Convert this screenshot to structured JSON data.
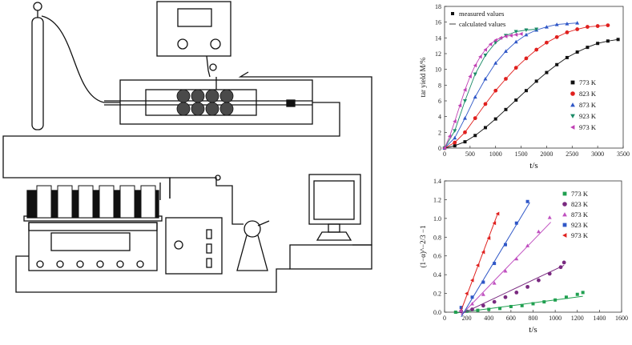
{
  "colors": {
    "series": [
      "#111111",
      "#e0201e",
      "#2f57c7",
      "#1a8a66",
      "#c040b4"
    ],
    "series2": [
      "#20a050",
      "#7a2a80",
      "#c050c0",
      "#2f57c7",
      "#e0201e"
    ]
  },
  "chart_data": [
    {
      "type": "scatter",
      "xlabel": "t/s",
      "ylabel": "tar yield M/%",
      "xlim": [
        0,
        3500
      ],
      "ylim": [
        0,
        18
      ],
      "xticks": [
        0,
        500,
        1000,
        1500,
        2000,
        2500,
        3000,
        3500
      ],
      "yticks": [
        0,
        2,
        4,
        6,
        8,
        10,
        12,
        14,
        16,
        18
      ],
      "legend_top": [
        "measured values",
        "calculated values"
      ],
      "legend_position": "top-left",
      "series": [
        {
          "name": "773 K",
          "marker": "square",
          "x": [
            0,
            200,
            400,
            600,
            800,
            1000,
            1200,
            1400,
            1600,
            1800,
            2000,
            2200,
            2400,
            2600,
            2800,
            3000,
            3200,
            3400
          ],
          "y": [
            0,
            0.3,
            0.8,
            1.6,
            2.6,
            3.7,
            4.9,
            6.1,
            7.3,
            8.5,
            9.6,
            10.6,
            11.5,
            12.2,
            12.8,
            13.3,
            13.6,
            13.8
          ]
        },
        {
          "name": "823 K",
          "marker": "circle",
          "x": [
            0,
            200,
            400,
            600,
            800,
            1000,
            1200,
            1400,
            1600,
            1800,
            2000,
            2200,
            2400,
            2600,
            2800,
            3000,
            3200
          ],
          "y": [
            0,
            0.7,
            2.0,
            3.8,
            5.6,
            7.3,
            8.8,
            10.2,
            11.4,
            12.5,
            13.4,
            14.1,
            14.7,
            15.1,
            15.4,
            15.5,
            15.6
          ]
        },
        {
          "name": "873 K",
          "marker": "triangle-up",
          "x": [
            0,
            200,
            400,
            600,
            800,
            1000,
            1200,
            1400,
            1600,
            1800,
            2000,
            2200,
            2400,
            2600
          ],
          "y": [
            0,
            1.3,
            3.8,
            6.5,
            8.8,
            10.8,
            12.3,
            13.5,
            14.4,
            15.0,
            15.4,
            15.7,
            15.8,
            15.9
          ]
        },
        {
          "name": "923 K",
          "marker": "triangle-down",
          "x": [
            0,
            200,
            400,
            600,
            800,
            1000,
            1200,
            1400,
            1600,
            1800
          ],
          "y": [
            0,
            2.2,
            6.0,
            9.4,
            11.8,
            13.4,
            14.3,
            14.8,
            15.0,
            15.1
          ]
        },
        {
          "name": "973 K",
          "marker": "triangle-left",
          "x": [
            0,
            100,
            200,
            300,
            400,
            500,
            600,
            700,
            800,
            900,
            1000,
            1100,
            1200,
            1300,
            1400,
            1500
          ],
          "y": [
            0,
            1.5,
            3.4,
            5.4,
            7.4,
            9.1,
            10.5,
            11.6,
            12.5,
            13.2,
            13.7,
            14.0,
            14.2,
            14.3,
            14.4,
            14.5
          ]
        }
      ]
    },
    {
      "type": "scatter",
      "xlabel": "t/s",
      "ylabel": "(1−α)^−2/3 −1",
      "xlim": [
        0,
        1600
      ],
      "ylim": [
        0,
        1.4
      ],
      "xticks": [
        0,
        200,
        400,
        600,
        800,
        1000,
        1200,
        1400,
        1600
      ],
      "yticks": [
        0.0,
        0.2,
        0.4,
        0.6,
        0.8,
        1.0,
        1.2,
        1.4
      ],
      "legend_position": "top-right",
      "series": [
        {
          "name": "773 K",
          "marker": "square",
          "x": [
            100,
            200,
            300,
            400,
            500,
            600,
            700,
            800,
            900,
            1000,
            1100,
            1200,
            1250
          ],
          "y": [
            0.0,
            0.01,
            0.02,
            0.03,
            0.04,
            0.06,
            0.07,
            0.09,
            0.11,
            0.13,
            0.16,
            0.19,
            0.21
          ],
          "fit": [
            [
              100,
              -0.01
            ],
            [
              1250,
              0.17
            ]
          ]
        },
        {
          "name": "823 K",
          "marker": "circle",
          "x": [
            150,
            250,
            350,
            450,
            550,
            650,
            750,
            850,
            950,
            1050,
            1080
          ],
          "y": [
            0.01,
            0.03,
            0.07,
            0.11,
            0.16,
            0.21,
            0.27,
            0.34,
            0.41,
            0.48,
            0.53
          ],
          "fit": [
            [
              150,
              -0.02
            ],
            [
              1080,
              0.5
            ]
          ]
        },
        {
          "name": "873 K",
          "marker": "triangle-up",
          "x": [
            150,
            250,
            350,
            450,
            550,
            650,
            750,
            850,
            950
          ],
          "y": [
            0.02,
            0.09,
            0.19,
            0.31,
            0.44,
            0.57,
            0.71,
            0.86,
            1.01
          ],
          "fit": [
            [
              150,
              -0.03
            ],
            [
              960,
              0.96
            ]
          ]
        },
        {
          "name": "923 K",
          "marker": "square",
          "x": [
            150,
            250,
            350,
            450,
            550,
            650,
            750
          ],
          "y": [
            0.05,
            0.16,
            0.32,
            0.52,
            0.72,
            0.95,
            1.18
          ],
          "fit": [
            [
              150,
              -0.05
            ],
            [
              770,
              1.17
            ]
          ]
        },
        {
          "name": "973 K",
          "marker": "triangle-left",
          "x": [
            200,
            250,
            300,
            350,
            400,
            450,
            480
          ],
          "y": [
            0.2,
            0.34,
            0.5,
            0.64,
            0.79,
            0.95,
            1.05
          ],
          "fit": [
            [
              150,
              0.02
            ],
            [
              480,
              1.05
            ]
          ]
        }
      ]
    }
  ]
}
